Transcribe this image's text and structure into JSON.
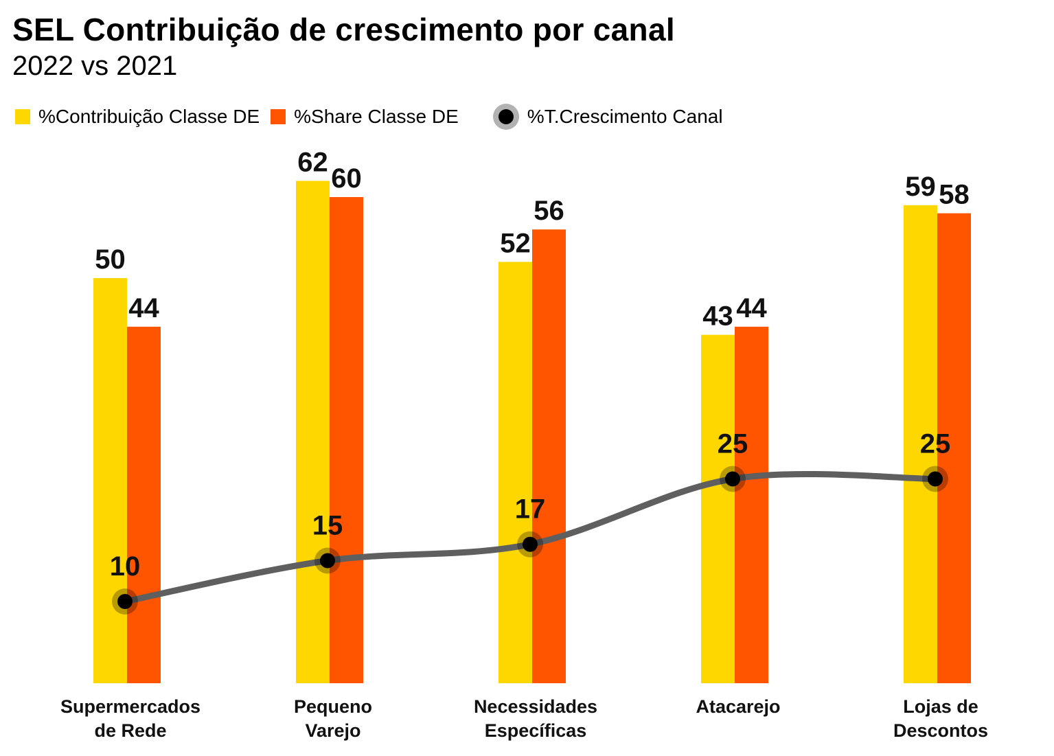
{
  "title": "SEL Contribuição de crescimento por canal",
  "subtitle": "2022 vs 2021",
  "legend": {
    "contribuicao": "%Contribuição Classe DE",
    "share": "%Share Classe DE",
    "crescimento": "%T.Crescimento Canal"
  },
  "colors": {
    "contribuicao": "#FFD700",
    "share": "#FF5500",
    "line": "#5f5f5f",
    "dot": "#000000"
  },
  "chart_data": {
    "type": "bar",
    "categories": [
      [
        "Supermercados",
        "de Rede"
      ],
      [
        "Pequeno",
        "Varejo"
      ],
      [
        "Necessidades",
        "Específicas"
      ],
      [
        "Atacarejo"
      ],
      [
        "Lojas de",
        "Descontos"
      ]
    ],
    "series": [
      {
        "name": "%Contribuição Classe DE",
        "kind": "bar",
        "values": [
          50,
          62,
          52,
          43,
          59
        ]
      },
      {
        "name": "%Share Classe DE",
        "kind": "bar",
        "values": [
          44,
          60,
          56,
          44,
          58
        ]
      },
      {
        "name": "%T.Crescimento Canal",
        "kind": "line",
        "smooth": true,
        "values": [
          10,
          15,
          17,
          25,
          25
        ]
      }
    ],
    "ylim": [
      0,
      62
    ],
    "grid": false,
    "legend_position": "top-left",
    "data_labels": true
  }
}
